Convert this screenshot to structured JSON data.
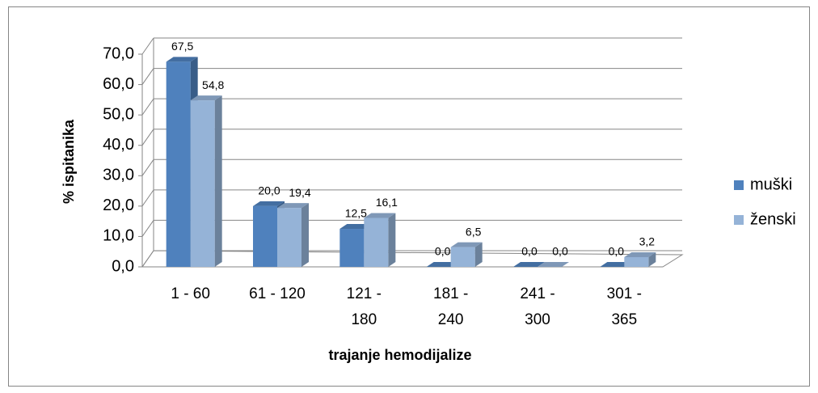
{
  "chart_data": {
    "type": "bar3d",
    "x_label": "trajanje hemodijalize",
    "y_label": "% ispitanika",
    "categories": [
      "1 - 60",
      "61 - 120",
      "121 - 180",
      "181 - 240",
      "241 - 300",
      "301 - 365"
    ],
    "series": [
      {
        "name": "muški",
        "color": "#4f81bd",
        "values": [
          67.5,
          20.0,
          12.5,
          0.0,
          0.0,
          0.0
        ],
        "value_labels": [
          "67,5",
          "20,0",
          "12,5",
          "0,0",
          "0,0",
          "0,0"
        ]
      },
      {
        "name": "ženski",
        "color": "#95b3d7",
        "values": [
          54.8,
          19.4,
          16.1,
          6.5,
          0.0,
          3.2
        ],
        "value_labels": [
          "54,8",
          "19,4",
          "16,1",
          "6,5",
          "0,0",
          "3,2"
        ]
      }
    ],
    "ylim": [
      0,
      70
    ],
    "yticks": [
      {
        "value": 0,
        "label": "0,0"
      },
      {
        "value": 10,
        "label": "10,0"
      },
      {
        "value": 20,
        "label": "20,0"
      },
      {
        "value": 30,
        "label": "30,0"
      },
      {
        "value": 40,
        "label": "40,0"
      },
      {
        "value": 50,
        "label": "50,0"
      },
      {
        "value": 60,
        "label": "60,0"
      },
      {
        "value": 70,
        "label": "70,0"
      }
    ],
    "grid": true,
    "legend": "right"
  }
}
